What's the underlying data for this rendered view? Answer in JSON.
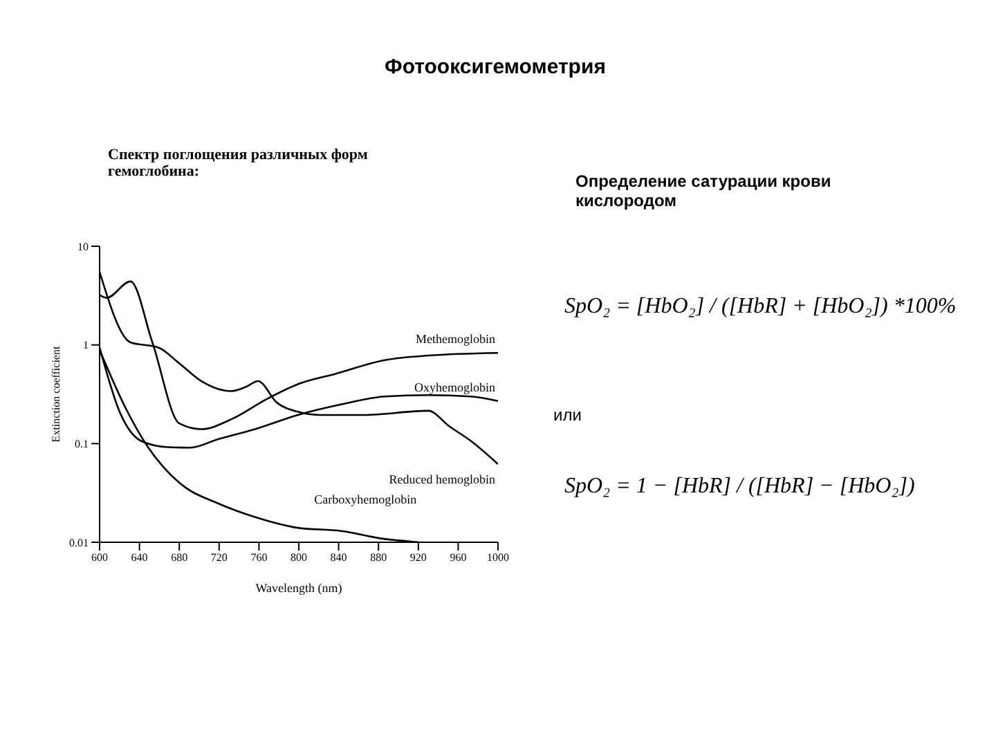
{
  "chart_data": {
    "type": "line",
    "title": "Фотооксигемометрия",
    "subtitle": "Спектр поглощения различных форм гемоглобина:",
    "xlabel": "Wavelength (nm)",
    "ylabel": "Extinction coefficient",
    "annotations": [
      "Определение сатурации крови кислородом",
      "SpO₂ = [HbO₂] / ([HbR] + [HbO₂]) *100%",
      "или",
      "SpO₂ = 1 − [HbR] / ([HbR] − [HbO₂])"
    ],
    "xlim": [
      600,
      1000
    ],
    "xticks": [
      600,
      640,
      680,
      720,
      760,
      800,
      840,
      880,
      920,
      960,
      1000
    ],
    "ylim": [
      0.01,
      10
    ],
    "yticks": [
      0.01,
      0.1,
      1,
      10
    ],
    "log": "y",
    "grid": false,
    "legend": false,
    "marker": "none",
    "line_style": "solid",
    "series": [
      {
        "name": "Methemoglobin",
        "color": "#000000",
        "x": [
          600,
          607,
          631,
          653,
          680,
          702,
          734,
          767,
          799,
          837,
          886,
          930,
          1000
        ],
        "values": [
          3.2,
          3.0,
          4.4,
          1.06,
          0.16,
          0.14,
          0.18,
          0.28,
          0.4,
          0.51,
          0.7,
          0.78,
          0.83
        ]
      },
      {
        "name": "Reduced hemoglobin",
        "color": "#000000",
        "x": [
          600,
          631,
          659,
          680,
          702,
          732,
          748,
          759,
          778,
          799,
          821,
          865,
          930,
          951,
          973,
          1000
        ],
        "values": [
          5.5,
          1.06,
          0.94,
          0.65,
          0.43,
          0.34,
          0.38,
          0.43,
          0.26,
          0.21,
          0.195,
          0.195,
          0.215,
          0.15,
          0.106,
          0.062
        ]
      },
      {
        "name": "Oxyhemoglobin",
        "color": "#000000",
        "x": [
          600,
          621,
          642,
          669,
          691,
          718,
          756,
          799,
          843,
          886,
          930,
          973,
          1000
        ],
        "values": [
          0.94,
          0.2,
          0.106,
          0.092,
          0.091,
          0.11,
          0.14,
          0.195,
          0.25,
          0.3,
          0.31,
          0.3,
          0.27
        ]
      },
      {
        "name": "Carboxyhemoglobin",
        "color": "#000000",
        "x": [
          600,
          627,
          648,
          664,
          686,
          718,
          756,
          799,
          843,
          881,
          921
        ],
        "values": [
          0.89,
          0.22,
          0.094,
          0.058,
          0.036,
          0.025,
          0.018,
          0.014,
          0.013,
          0.011,
          0.01
        ]
      }
    ]
  }
}
